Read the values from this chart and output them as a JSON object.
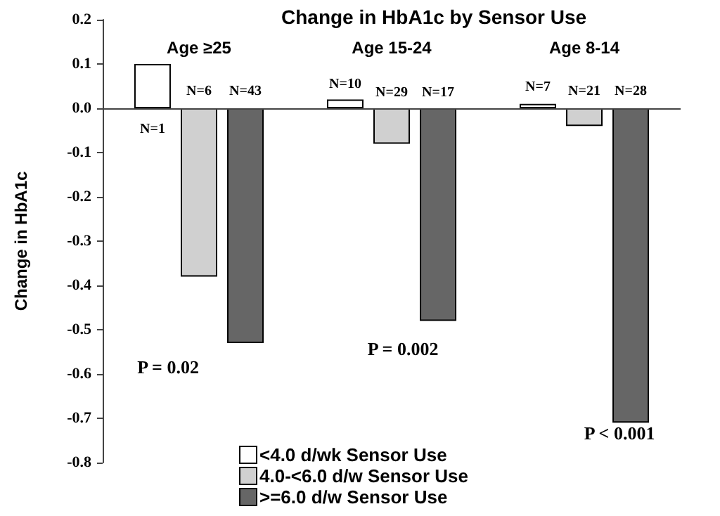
{
  "chart_data": {
    "type": "bar",
    "title": "Change in HbA1c by Sensor Use",
    "ylabel": "Change in HbA1c",
    "categories": [
      "Age ≥25",
      "Age 15-24",
      "Age 8-14"
    ],
    "series": [
      {
        "name": "<4.0 d/wk Sensor Use",
        "color": "#ffffff",
        "values": [
          0.1,
          0.02,
          0.01
        ]
      },
      {
        "name": "4.0-<6.0 d/w Sensor Use",
        "color": "#d0d0d0",
        "values": [
          -0.38,
          -0.08,
          -0.04
        ]
      },
      {
        "name": ">=6.0 d/w Sensor Use",
        "color": "#666666",
        "values": [
          -0.53,
          -0.48,
          -0.71
        ]
      }
    ],
    "annotations": [
      "N=1",
      "N=6",
      "N=43",
      "N=10",
      "N=29",
      "N=17",
      "N=7",
      "N=21",
      "N=28",
      "P = 0.02",
      "P = 0.002",
      "P < 0.001"
    ],
    "ref_lines": [
      {
        "axis": "y",
        "value": 0,
        "color": "#444444"
      }
    ],
    "ylim": [
      -0.8,
      0.2
    ],
    "yticks": [
      {
        "value": -0.8,
        "label": "-0.8"
      },
      {
        "value": -0.7,
        "label": "-0.7"
      },
      {
        "value": -0.6,
        "label": "-0.6"
      },
      {
        "value": -0.5,
        "label": "-0.5"
      },
      {
        "value": -0.4,
        "label": "-0.4"
      },
      {
        "value": -0.3,
        "label": "-0.3"
      },
      {
        "value": -0.2,
        "label": "-0.2"
      },
      {
        "value": -0.1,
        "label": "-0.1"
      },
      {
        "value": 0,
        "label": "0.0"
      },
      {
        "value": 0.1,
        "label": "0.1"
      },
      {
        "value": 0.2,
        "label": "0.2"
      }
    ],
    "legend": "bottom"
  }
}
